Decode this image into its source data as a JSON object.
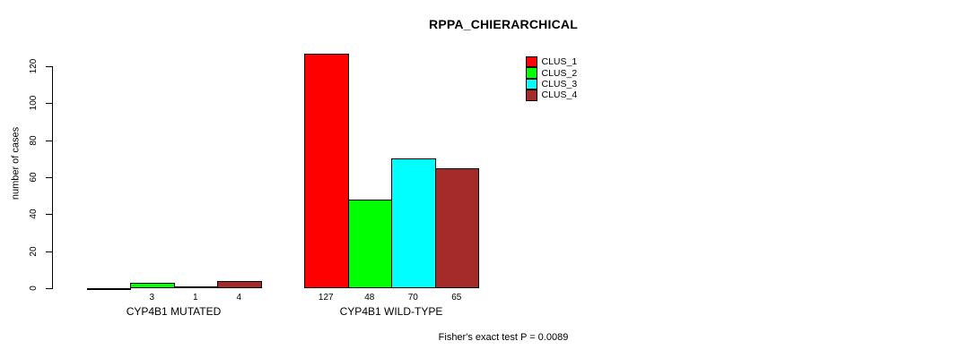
{
  "chart_data": {
    "type": "bar",
    "title": "RPPA_CHIERARCHICAL",
    "xlabel": "",
    "ylabel": "number of cases",
    "ylim": [
      0,
      130
    ],
    "yticks": [
      0,
      20,
      40,
      60,
      80,
      100,
      120
    ],
    "grid": false,
    "legend_position": "top-right",
    "categories": [
      "CYP4B1 MUTATED",
      "CYP4B1 WILD-TYPE"
    ],
    "series": [
      {
        "name": "CLUS_1",
        "color": "#FF0000",
        "values": [
          0,
          127
        ]
      },
      {
        "name": "CLUS_2",
        "color": "#00FF00",
        "values": [
          3,
          48
        ]
      },
      {
        "name": "CLUS_3",
        "color": "#00FFFF",
        "values": [
          1,
          70
        ]
      },
      {
        "name": "CLUS_4",
        "color": "#A52A2A",
        "values": [
          4,
          65
        ]
      }
    ],
    "bar_value_labels": {
      "CYP4B1 MUTATED": [
        "",
        "3",
        "1",
        "4"
      ],
      "CYP4B1 WILD-TYPE": [
        "127",
        "48",
        "70",
        "65"
      ]
    }
  },
  "annotation": "Fisher's exact test P = 0.0089",
  "colors": {
    "axis": "#000000",
    "background": "#FFFFFF",
    "bar_border": "#000000"
  }
}
